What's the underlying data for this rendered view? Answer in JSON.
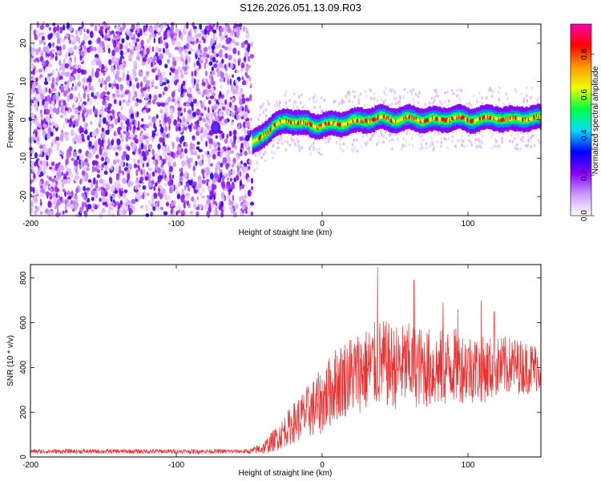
{
  "title": "S126.2026.051.13.09.R03",
  "chart_data": [
    {
      "type": "heatmap",
      "xlabel": "Height of straight line (km)",
      "ylabel": "Frequency (Hz)",
      "xlim": [
        -200,
        150
      ],
      "ylim": [
        -25,
        25
      ],
      "xticks": [
        -200,
        -100,
        0,
        100
      ],
      "yticks": [
        -20,
        -10,
        0,
        10,
        20
      ],
      "colorbar": {
        "label": "Normalized spectral amplitude",
        "range": [
          0,
          0.95
        ],
        "ticks": [
          0.0,
          0.2,
          0.4,
          0.6,
          0.8
        ],
        "tick_labels": [
          "0.0",
          "0.2",
          "0.4",
          "0.6",
          "0.8"
        ],
        "colors": [
          "#ffffff",
          "#cc99ff",
          "#8800ff",
          "#0000ff",
          "#00ddff",
          "#00ff44",
          "#eeff00",
          "#ff9900",
          "#ff0000",
          "#ff00aa"
        ]
      },
      "noise_region_x": [
        -200,
        -48
      ],
      "signal_track": {
        "x": [
          -48,
          -45,
          -42,
          -38,
          -34,
          -30,
          -25,
          -20,
          -15,
          -10,
          -5,
          0,
          10,
          20,
          30,
          40,
          50,
          60,
          70,
          80,
          90,
          100,
          110,
          120,
          130,
          140,
          150
        ],
        "y": [
          -6,
          -5,
          -4,
          -3,
          -2,
          -1,
          0,
          -0.5,
          -1,
          -1,
          -1.5,
          -1.5,
          -1,
          -0.5,
          0,
          0.5,
          0,
          0.5,
          0,
          0,
          0.5,
          0,
          0.3,
          0.5,
          0,
          0.5,
          0.5
        ]
      },
      "isolated_blob": {
        "x": -73,
        "y": -2
      }
    },
    {
      "type": "line",
      "xlabel": "Height of straight line (km)",
      "ylabel": "SNR (10 * v/v)",
      "xlim": [
        -200,
        150
      ],
      "ylim": [
        0,
        860
      ],
      "xticks": [
        -200,
        -100,
        0,
        100
      ],
      "yticks": [
        0,
        200,
        400,
        600,
        800
      ],
      "line_color": "#ee3030",
      "series_envelope": {
        "x": [
          -200,
          -50,
          -40,
          -30,
          -20,
          -10,
          0,
          10,
          20,
          30,
          40,
          50,
          60,
          70,
          80,
          90,
          100,
          110,
          120,
          130,
          140,
          150
        ],
        "mean": [
          25,
          25,
          40,
          90,
          150,
          200,
          250,
          330,
          370,
          390,
          420,
          400,
          410,
          400,
          390,
          410,
          400,
          390,
          400,
          410,
          400,
          400
        ],
        "spread": [
          10,
          10,
          30,
          60,
          90,
          120,
          150,
          170,
          180,
          190,
          200,
          190,
          190,
          180,
          180,
          170,
          160,
          150,
          140,
          130,
          120,
          110
        ]
      },
      "peaks": [
        {
          "x": 38,
          "y": 850
        },
        {
          "x": 63,
          "y": 790
        },
        {
          "x": 83,
          "y": 690
        },
        {
          "x": 93,
          "y": 660
        },
        {
          "x": 109,
          "y": 700
        },
        {
          "x": 118,
          "y": 650
        }
      ]
    }
  ]
}
